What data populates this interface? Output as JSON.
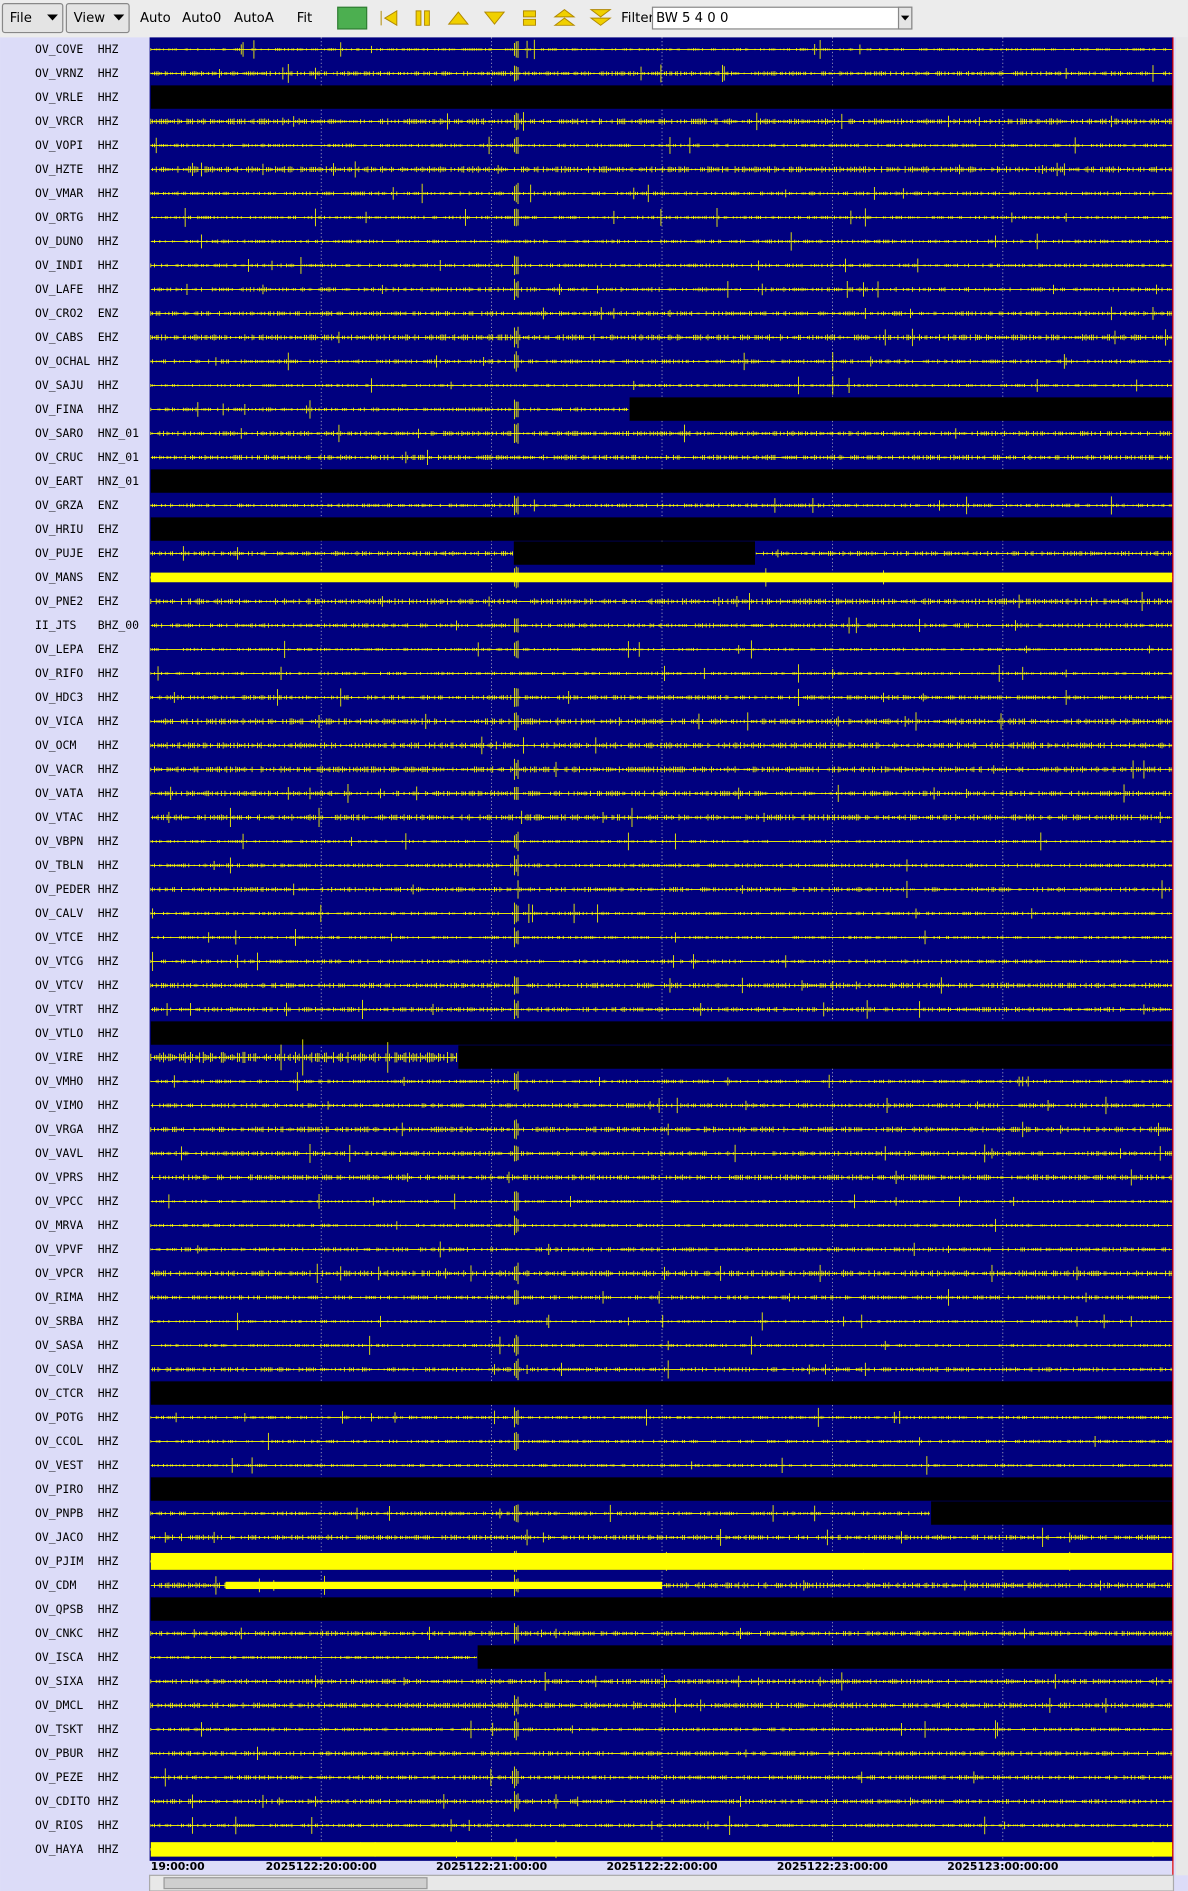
{
  "toolbar": {
    "file": "File",
    "view": "View",
    "auto": "Auto",
    "auto0": "Auto0",
    "autoa": "AutoA",
    "fit": "Fit",
    "filter_label": "Filter",
    "filter_value": "BW 5 4 0 0"
  },
  "stations": [
    [
      "OV_COVE",
      "HHZ"
    ],
    [
      "OV_VRNZ",
      "HHZ"
    ],
    [
      "OV_VRLE",
      "HHZ"
    ],
    [
      "OV_VRCR",
      "HHZ"
    ],
    [
      "OV_VOPI",
      "HHZ"
    ],
    [
      "OV_HZTE",
      "HHZ"
    ],
    [
      "OV_VMAR",
      "HHZ"
    ],
    [
      "OV_ORTG",
      "HHZ"
    ],
    [
      "OV_DUNO",
      "HHZ"
    ],
    [
      "OV_INDI",
      "HHZ"
    ],
    [
      "OV_LAFE",
      "HHZ"
    ],
    [
      "OV_CRO2",
      "ENZ"
    ],
    [
      "OV_CABS",
      "EHZ"
    ],
    [
      "OV_OCHAL",
      "HHZ"
    ],
    [
      "OV_SAJU",
      "HHZ"
    ],
    [
      "OV_FINA",
      "HHZ"
    ],
    [
      "OV_SARO",
      "HNZ_01"
    ],
    [
      "OV_CRUC",
      "HNZ_01"
    ],
    [
      "OV_EART",
      "HNZ_01"
    ],
    [
      "OV_GRZA",
      "ENZ"
    ],
    [
      "OV_HRIU",
      "EHZ"
    ],
    [
      "OV_PUJE",
      "EHZ"
    ],
    [
      "OV_MANS",
      "ENZ"
    ],
    [
      "OV_PNE2",
      "EHZ"
    ],
    [
      "II_JTS",
      "BHZ_00"
    ],
    [
      "OV_LEPA",
      "EHZ"
    ],
    [
      "OV_RIFO",
      "HHZ"
    ],
    [
      "OV_HDC3",
      "HHZ"
    ],
    [
      "OV_VICA",
      "HHZ"
    ],
    [
      "OV_OCM",
      "HHZ"
    ],
    [
      "OV_VACR",
      "HHZ"
    ],
    [
      "OV_VATA",
      "HHZ"
    ],
    [
      "OV_VTAC",
      "HHZ"
    ],
    [
      "OV_VBPN",
      "HHZ"
    ],
    [
      "OV_TBLN",
      "HHZ"
    ],
    [
      "OV_PEDER",
      "HHZ"
    ],
    [
      "OV_CALV",
      "HHZ"
    ],
    [
      "OV_VTCE",
      "HHZ"
    ],
    [
      "OV_VTCG",
      "HHZ"
    ],
    [
      "OV_VTCV",
      "HHZ"
    ],
    [
      "OV_VTRT",
      "HHZ"
    ],
    [
      "OV_VTLO",
      "HHZ"
    ],
    [
      "OV_VIRE",
      "HHZ"
    ],
    [
      "OV_VMHO",
      "HHZ"
    ],
    [
      "OV_VIMO",
      "HHZ"
    ],
    [
      "OV_VRGA",
      "HHZ"
    ],
    [
      "OV_VAVL",
      "HHZ"
    ],
    [
      "OV_VPRS",
      "HHZ"
    ],
    [
      "OV_VPCC",
      "HHZ"
    ],
    [
      "OV_MRVA",
      "HHZ"
    ],
    [
      "OV_VPVF",
      "HHZ"
    ],
    [
      "OV_VPCR",
      "HHZ"
    ],
    [
      "OV_RIMA",
      "HHZ"
    ],
    [
      "OV_SRBA",
      "HHZ"
    ],
    [
      "OV_SASA",
      "HHZ"
    ],
    [
      "OV_COLV",
      "HHZ"
    ],
    [
      "OV_CTCR",
      "HHZ"
    ],
    [
      "OV_POTG",
      "HHZ"
    ],
    [
      "OV_CCOL",
      "HHZ"
    ],
    [
      "OV_VEST",
      "HHZ"
    ],
    [
      "OV_PIRO",
      "HHZ"
    ],
    [
      "OV_PNPB",
      "HHZ"
    ],
    [
      "OV_JACO",
      "HHZ"
    ],
    [
      "OV_PJIM",
      "HHZ"
    ],
    [
      "OV_CDM",
      "HHZ"
    ],
    [
      "OV_QPSB",
      "HHZ"
    ],
    [
      "OV_CNKC",
      "HHZ"
    ],
    [
      "OV_ISCA",
      "HHZ"
    ],
    [
      "OV_SIXA",
      "HHZ"
    ],
    [
      "OV_DMCL",
      "HHZ"
    ],
    [
      "OV_TSKT",
      "HHZ"
    ],
    [
      "OV_PBUR",
      "HHZ"
    ],
    [
      "OV_PEZE",
      "HHZ"
    ],
    [
      "OV_CDITO",
      "HHZ"
    ],
    [
      "OV_RIOS",
      "HHZ"
    ],
    [
      "OV_HAYA",
      "HHZ"
    ]
  ],
  "time_labels": [
    "19:00:00",
    "2025122:20:00:00",
    "2025122:21:00:00",
    "2025122:22:00:00",
    "2025122:23:00:00",
    "2025123:00:00:00"
  ]
}
